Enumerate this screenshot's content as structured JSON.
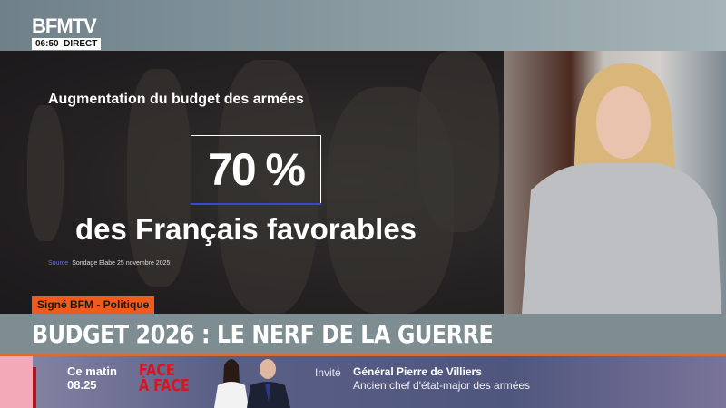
{
  "channel": {
    "logo": "BFMTV",
    "time": "06:50",
    "live_label": "DIRECT"
  },
  "graphic": {
    "title": "Augmentation du budget des armées",
    "value": "70 %",
    "subtitle": "des Français favorables",
    "source_label": "Source",
    "source_text": "Sondage Elabe 25 novembre 2025"
  },
  "segment_tag": "Signé BFM - Politique",
  "headline": "BUDGET 2026 : LE NERF DE LA GUERRE",
  "promo": {
    "when": "Ce matin",
    "time": "08.25",
    "show_line1": "FACE",
    "show_line2": "À FACE",
    "guest_label": "Invité",
    "guest_name": "Général Pierre de Villiers",
    "guest_title": "Ancien chef d'état-major des armées"
  },
  "colors": {
    "accent_orange": "#f05a1a",
    "headline_bar": "#7d8d91",
    "show_red": "#d8151e",
    "pct_underline": "#3b45d8"
  }
}
